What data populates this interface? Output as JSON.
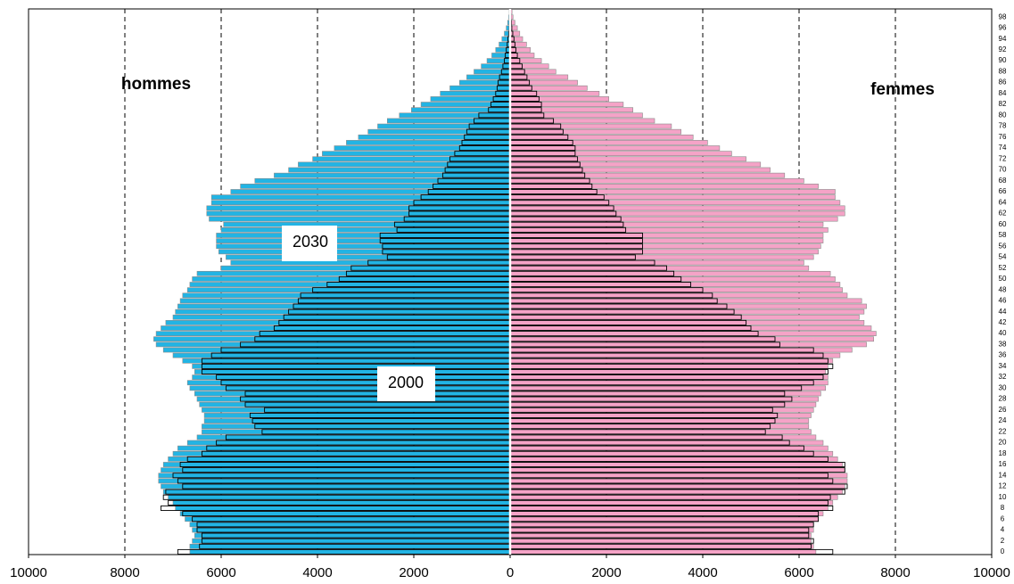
{
  "chart_data": {
    "type": "pyramid",
    "annotations": [
      "hommes",
      "femmes",
      "2030",
      "2000"
    ],
    "categories": [
      0,
      null,
      2,
      null,
      4,
      null,
      6,
      null,
      8,
      null,
      10,
      null,
      12,
      null,
      14,
      null,
      16,
      null,
      18,
      null,
      20,
      null,
      22,
      null,
      24,
      null,
      26,
      null,
      28,
      null,
      30,
      null,
      32,
      null,
      34,
      null,
      36,
      null,
      38,
      null,
      40,
      null,
      42,
      null,
      44,
      null,
      46,
      null,
      48,
      null,
      50,
      null,
      52,
      null,
      54,
      null,
      56,
      null,
      58,
      null,
      60,
      null,
      62,
      null,
      64,
      null,
      66,
      null,
      68,
      null,
      70,
      null,
      72,
      null,
      74,
      null,
      76,
      null,
      78,
      null,
      80,
      null,
      82,
      null,
      84,
      null,
      86,
      null,
      88,
      null,
      90,
      null,
      92,
      null,
      94,
      null,
      96,
      null,
      98,
      null
    ],
    "series": [
      {
        "side": "left",
        "outline": false,
        "color": "#22b4e4",
        "edge": "#8a8a8a",
        "values": [
          6650,
          6650,
          6600,
          6550,
          6600,
          6650,
          6750,
          6850,
          6950,
          7000,
          7100,
          7200,
          7250,
          7300,
          7300,
          7250,
          7200,
          7100,
          7000,
          6900,
          6700,
          6500,
          6400,
          6400,
          6350,
          6350,
          6400,
          6450,
          6500,
          6550,
          6650,
          6700,
          6600,
          6550,
          6600,
          6800,
          7000,
          7200,
          7350,
          7400,
          7350,
          7250,
          7150,
          7000,
          6950,
          6900,
          6850,
          6800,
          6700,
          6650,
          6600,
          6500,
          6000,
          5800,
          5900,
          6050,
          6100,
          6100,
          6100,
          6000,
          5950,
          6250,
          6300,
          6300,
          6200,
          6200,
          5800,
          5600,
          5300,
          4900,
          4600,
          4400,
          4100,
          3900,
          3650,
          3400,
          3150,
          2950,
          2750,
          2550,
          2300,
          2050,
          1850,
          1650,
          1450,
          1250,
          1050,
          900,
          750,
          600,
          480,
          380,
          300,
          230,
          170,
          120,
          80,
          50,
          30,
          20
        ]
      },
      {
        "side": "left",
        "outline": true,
        "color": "#000000",
        "values": [
          6900,
          6450,
          6400,
          6400,
          6500,
          6500,
          6600,
          6800,
          7250,
          7100,
          7200,
          7150,
          6800,
          6900,
          7000,
          6800,
          6850,
          6700,
          6400,
          6300,
          6100,
          5900,
          5150,
          5300,
          5350,
          5400,
          5100,
          5500,
          5600,
          5500,
          5900,
          6000,
          6100,
          6400,
          6400,
          6400,
          6200,
          6000,
          5600,
          5300,
          5200,
          4900,
          4800,
          4700,
          4600,
          4500,
          4400,
          4350,
          4100,
          3800,
          3550,
          3400,
          3300,
          2950,
          2550,
          2650,
          2650,
          2700,
          2700,
          2350,
          2400,
          2200,
          2100,
          2100,
          2000,
          1850,
          1700,
          1600,
          1500,
          1400,
          1350,
          1300,
          1250,
          1150,
          1050,
          1000,
          950,
          900,
          850,
          750,
          650,
          450,
          400,
          350,
          300,
          270,
          250,
          220,
          180,
          150,
          120,
          100,
          80,
          60,
          45,
          30,
          20,
          15,
          10,
          5
        ]
      },
      {
        "side": "right",
        "outline": false,
        "color": "#f5a3c7",
        "edge": "#8a8a8a",
        "values": [
          6350,
          6300,
          6250,
          6250,
          6300,
          6300,
          6400,
          6500,
          6600,
          6700,
          6800,
          6900,
          6950,
          7000,
          7000,
          6950,
          6900,
          6800,
          6700,
          6600,
          6500,
          6350,
          6250,
          6200,
          6200,
          6250,
          6300,
          6350,
          6400,
          6450,
          6550,
          6600,
          6600,
          6550,
          6600,
          6700,
          6850,
          7100,
          7400,
          7550,
          7600,
          7500,
          7350,
          7250,
          7350,
          7400,
          7300,
          7000,
          6900,
          6850,
          6750,
          6650,
          6200,
          6100,
          6300,
          6400,
          6450,
          6500,
          6500,
          6600,
          6500,
          6800,
          6950,
          6950,
          6850,
          6750,
          6750,
          6400,
          6100,
          5700,
          5400,
          5200,
          4900,
          4600,
          4350,
          4100,
          3800,
          3550,
          3350,
          3000,
          2750,
          2550,
          2350,
          2050,
          1850,
          1600,
          1400,
          1200,
          950,
          800,
          650,
          500,
          420,
          340,
          260,
          200,
          150,
          100,
          60,
          40
        ]
      },
      {
        "side": "right",
        "outline": true,
        "color": "#000000",
        "values": [
          6700,
          6250,
          6300,
          6200,
          6200,
          6300,
          6400,
          6400,
          6700,
          6600,
          6650,
          6950,
          7000,
          6700,
          6600,
          6950,
          6950,
          6600,
          6300,
          6100,
          5800,
          5650,
          5300,
          5400,
          5500,
          5550,
          5450,
          5700,
          5850,
          5700,
          6050,
          6300,
          6500,
          6600,
          6700,
          6600,
          6500,
          6300,
          5600,
          5500,
          5150,
          5000,
          4900,
          4800,
          4650,
          4500,
          4300,
          4200,
          4000,
          3750,
          3550,
          3400,
          3250,
          3000,
          2600,
          2750,
          2750,
          2750,
          2750,
          2400,
          2350,
          2300,
          2200,
          2150,
          2050,
          1950,
          1800,
          1700,
          1650,
          1550,
          1500,
          1450,
          1400,
          1350,
          1350,
          1300,
          1200,
          1100,
          1050,
          900,
          700,
          650,
          650,
          600,
          550,
          450,
          400,
          350,
          300,
          250,
          200,
          150,
          120,
          100,
          80,
          55,
          35,
          25,
          15,
          10
        ]
      }
    ],
    "xlim": [
      -10000,
      10000
    ],
    "xticks": [
      {
        "value": -10000,
        "label": "10000"
      },
      {
        "value": -8000,
        "label": "8000"
      },
      {
        "value": -6000,
        "label": "6000"
      },
      {
        "value": -4000,
        "label": "4000"
      },
      {
        "value": -2000,
        "label": "2000"
      },
      0,
      2000,
      4000,
      6000,
      8000,
      10000
    ],
    "grid": true
  }
}
